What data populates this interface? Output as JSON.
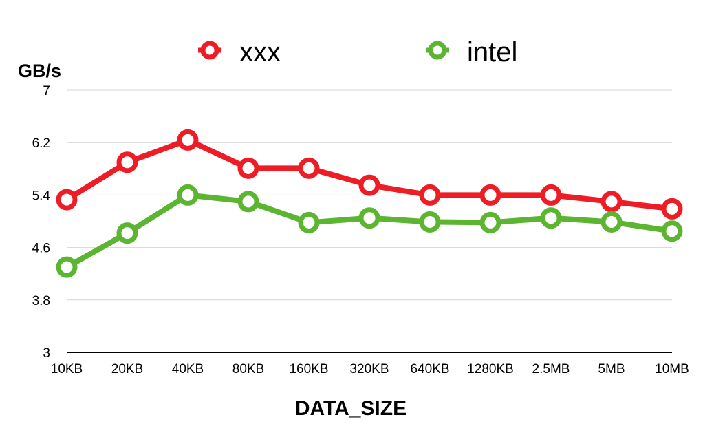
{
  "chart_data": {
    "type": "line",
    "ylabel": "GB/s",
    "xlabel": "DATA_SIZE",
    "ylim": [
      3,
      7
    ],
    "yticks": [
      3,
      3.8,
      4.6,
      5.4,
      6.2,
      7
    ],
    "ytick_labels": [
      "3",
      "3.8",
      "4.6",
      "5.4",
      "6.2",
      "7"
    ],
    "grid": true,
    "legend_position": "top",
    "categories": [
      "10KB",
      "20KB",
      "40KB",
      "80KB",
      "160KB",
      "320KB",
      "640KB",
      "1280KB",
      "2.5MB",
      "5MB",
      "10MB"
    ],
    "series": [
      {
        "name": "xxx",
        "color": "#ee1c25",
        "values": [
          5.33,
          5.9,
          6.24,
          5.81,
          5.81,
          5.55,
          5.4,
          5.4,
          5.4,
          5.3,
          5.19
        ]
      },
      {
        "name": "intel",
        "color": "#5bb531",
        "values": [
          4.3,
          4.82,
          5.4,
          5.3,
          4.98,
          5.05,
          4.99,
          4.98,
          5.05,
          4.99,
          4.85
        ]
      }
    ]
  }
}
